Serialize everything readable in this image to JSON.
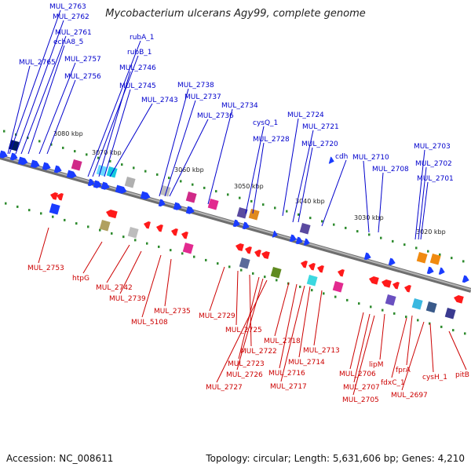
{
  "title": "Mycobacterium ulcerans Agy99, complete genome",
  "footer": {
    "accession": "Accession: NC_008611",
    "topology": "Topology: circular; Length: 5,631,606 bp; Genes: 4,210"
  },
  "scale_labels": [
    "3080 kbp",
    "3070 kbp",
    "3060 kbp",
    "3050 kbp",
    "3040 kbp",
    "3030 kbp",
    "3020 kbp"
  ],
  "top_labels": [
    "MUL_2763",
    "MUL_2762",
    "MUL_2761",
    "echA8_5",
    "MUL_2765",
    "MUL_2757",
    "MUL_2756",
    "rubA_1",
    "rubB_1",
    "MUL_2746",
    "MUL_2745",
    "MUL_2743",
    "MUL_2738",
    "MUL_2737",
    "MUL_2736",
    "MUL_2734",
    "cysQ_1",
    "MUL_2728",
    "MUL_2724",
    "MUL_2721",
    "MUL_2720",
    "cdh",
    "MUL_2710",
    "MUL_2708",
    "MUL_2703",
    "MUL_2702",
    "MUL_2701"
  ],
  "bottom_labels": [
    "MUL_2753",
    "htpG",
    "MUL_2742",
    "MUL_2739",
    "MUL_5108",
    "MUL_2735",
    "MUL_2729",
    "MUL_2725",
    "MUL_2722",
    "MUL_2723",
    "MUL_2726",
    "MUL_2727",
    "MUL_2718",
    "MUL_2716",
    "MUL_2717",
    "MUL_2714",
    "MUL_2713",
    "MUL_2706",
    "MUL_2707",
    "MUL_2705",
    "lipM",
    "fdxC_1",
    "fprA",
    "MUL_2697",
    "cysH_1",
    "pitB"
  ],
  "colors": {
    "forward_label": "#0000cc",
    "reverse_label": "#cc0000",
    "forward_arrow": "#1a3cff",
    "reverse_arrow": "#ff1a1a",
    "backbone": "#8c8c8c",
    "tick": "#2e8b2e"
  }
}
